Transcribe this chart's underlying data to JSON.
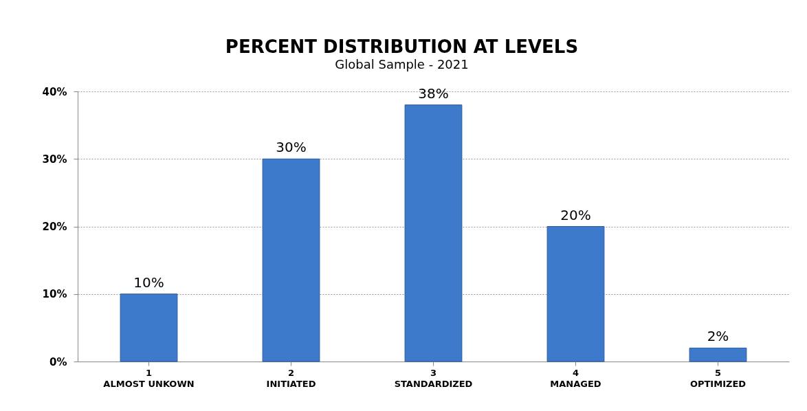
{
  "chart_data": {
    "type": "bar",
    "title": "PERCENT DISTRIBUTION AT LEVELS",
    "subtitle": "Global Sample - 2021",
    "categories": [
      "1\nALMOST UNKOWN",
      "2\nINITIATED",
      "3\nSTANDARDIZED",
      "4\nMANAGED",
      "5\nOPTIMIZED"
    ],
    "values": [
      10,
      30,
      38,
      20,
      2
    ],
    "value_labels": [
      "10%",
      "30%",
      "38%",
      "20%",
      "2%"
    ],
    "color": "#3d7acb",
    "ylim": [
      0,
      40
    ],
    "yticks": [
      {
        "value": 0,
        "label": "0%"
      },
      {
        "value": 10,
        "label": "10%"
      },
      {
        "value": 20,
        "label": "20%"
      },
      {
        "value": 30,
        "label": "30%"
      },
      {
        "value": 40,
        "label": "40%"
      }
    ],
    "grid": "y"
  }
}
